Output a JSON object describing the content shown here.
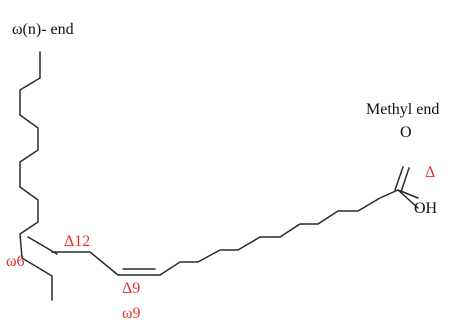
{
  "labels": {
    "omega_end": "ω(n)- end",
    "methyl_end": "Methyl end",
    "oxygen": "O",
    "hydroxyl": "OH",
    "delta": "Δ",
    "omega6": "ω6",
    "delta12": "Δ12",
    "delta9": "Δ9",
    "omega9": "ω9"
  },
  "colors": {
    "bond": "#2a2a2a",
    "text": "#111111",
    "accent": "#e8302a"
  }
}
